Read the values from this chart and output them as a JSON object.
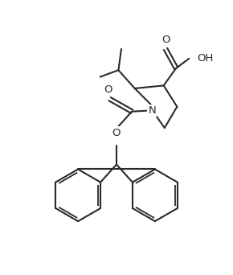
{
  "bg": "#ffffff",
  "lc": "#2a2a2a",
  "lw": 1.5,
  "lw_inner": 1.3,
  "fs": 9.5,
  "xlim": [
    -1,
    11
  ],
  "ylim": [
    0,
    13
  ],
  "figsize": [
    2.9,
    3.42
  ],
  "dpi": 100
}
